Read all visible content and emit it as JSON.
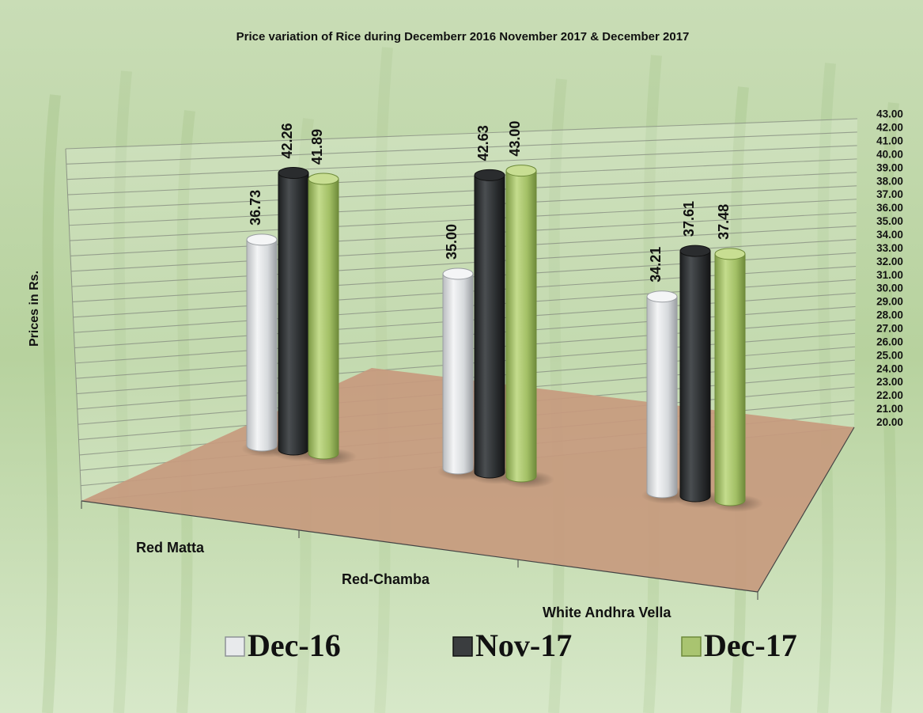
{
  "chart_data": {
    "type": "bar",
    "title": "Price variation of Rice during  Decemberr 2016  November  2017 &  December  2017",
    "ylabel": "Prices in Rs.",
    "xlabel": "",
    "ylim": [
      20,
      43
    ],
    "yticks": [
      "20.00",
      "21.00",
      "22.00",
      "23.00",
      "24.00",
      "25.00",
      "26.00",
      "27.00",
      "28.00",
      "29.00",
      "30.00",
      "31.00",
      "32.00",
      "33.00",
      "34.00",
      "35.00",
      "36.00",
      "37.00",
      "38.00",
      "39.00",
      "40.00",
      "41.00",
      "42.00",
      "43.00"
    ],
    "categories": [
      "Red Matta",
      "Red-Chamba",
      "White Andhra Vella"
    ],
    "series": [
      {
        "name": "Dec-16",
        "values": [
          36.73,
          35.0,
          34.21
        ],
        "labels": [
          "36.73",
          "35.00",
          "34.21"
        ],
        "color": "#e4e6e8"
      },
      {
        "name": "Nov-17",
        "values": [
          42.26,
          42.63,
          37.61
        ],
        "labels": [
          "42.26",
          "42.63",
          "37.61"
        ],
        "color": "#3a3d3f"
      },
      {
        "name": "Dec-17",
        "values": [
          41.89,
          43.0,
          37.48
        ],
        "labels": [
          "41.89",
          "43.00",
          "37.48"
        ],
        "color": "#a5c26b"
      }
    ],
    "grid": true,
    "legend": "bottom",
    "floor_color": "#c79a7e"
  }
}
